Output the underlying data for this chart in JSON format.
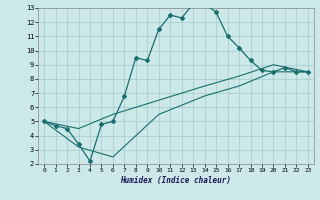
{
  "xlabel": "Humidex (Indice chaleur)",
  "bg_color": "#cce8e8",
  "grid_color": "#aacece",
  "line_color": "#1a6e6e",
  "xlim": [
    -0.5,
    23.5
  ],
  "ylim": [
    2,
    13
  ],
  "xticks": [
    0,
    1,
    2,
    3,
    4,
    5,
    6,
    7,
    8,
    9,
    10,
    11,
    12,
    13,
    14,
    15,
    16,
    17,
    18,
    19,
    20,
    21,
    22,
    23
  ],
  "yticks": [
    2,
    3,
    4,
    5,
    6,
    7,
    8,
    9,
    10,
    11,
    12,
    13
  ],
  "line1_x": [
    0,
    1,
    2,
    3,
    4,
    5,
    6,
    7,
    8,
    9,
    10,
    11,
    12,
    13,
    14,
    15,
    16,
    17,
    18,
    19,
    20,
    21,
    22,
    23
  ],
  "line1_y": [
    5.0,
    4.7,
    4.5,
    3.4,
    2.2,
    4.8,
    5.0,
    6.8,
    9.5,
    9.3,
    11.5,
    12.5,
    12.3,
    13.3,
    13.3,
    12.7,
    11.0,
    10.2,
    9.3,
    8.6,
    8.5,
    8.8,
    8.5,
    8.5
  ],
  "line2_x": [
    0,
    3,
    6,
    10,
    14,
    17,
    20,
    23
  ],
  "line2_y": [
    5.0,
    3.2,
    2.5,
    5.5,
    6.8,
    7.5,
    8.5,
    8.5
  ],
  "line3_x": [
    0,
    3,
    6,
    10,
    14,
    17,
    20,
    23
  ],
  "line3_y": [
    5.0,
    4.5,
    5.5,
    6.5,
    7.5,
    8.2,
    9.0,
    8.5
  ]
}
